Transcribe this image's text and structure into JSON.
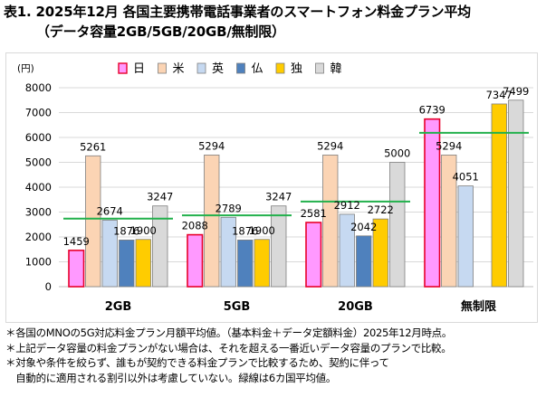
{
  "header": {
    "title": "表1. 2025年12月 各国主要携帯電話事業者のスマートフォン料金プラン平均",
    "subtitle": "（データ容量2GB/5GB/20GB/無制限）"
  },
  "chart_data": {
    "type": "bar",
    "title": "",
    "unit_label": "(円)",
    "categories": [
      "2GB",
      "5GB",
      "20GB",
      "無制限"
    ],
    "ylim": [
      0,
      8000
    ],
    "yticks": [
      0,
      1000,
      2000,
      3000,
      4000,
      5000,
      6000,
      7000,
      8000
    ],
    "grid": true,
    "legend_position": "top",
    "series": [
      {
        "name": "日",
        "color": "#ff99ff",
        "edge": "#e8002a",
        "values": [
          1459,
          2088,
          2581,
          6739
        ]
      },
      {
        "name": "米",
        "color": "#fbd4b4",
        "edge": "#7f7f7f",
        "values": [
          5261,
          5294,
          5294,
          5294
        ]
      },
      {
        "name": "英",
        "color": "#c6d9f1",
        "edge": "#7f7f7f",
        "values": [
          2674,
          2789,
          2912,
          4051
        ]
      },
      {
        "name": "仏",
        "color": "#4f81bd",
        "edge": "#7f7f7f",
        "values": [
          1876,
          1876,
          2042,
          null
        ]
      },
      {
        "name": "独",
        "color": "#ffcc00",
        "edge": "#7f7f7f",
        "values": [
          1900,
          1900,
          2722,
          7347
        ]
      },
      {
        "name": "韓",
        "color": "#d9d9d9",
        "edge": "#7f7f7f",
        "values": [
          3247,
          3247,
          5000,
          7499
        ]
      }
    ],
    "averages": {
      "color": "#22b14c",
      "values": [
        2736,
        2866,
        3425,
        6186
      ]
    }
  },
  "notes": [
    "＊各国のMNOの5G対応料金プラン月額平均値。（基本料金＋データ定額料金）2025年12月時点。",
    "＊上記データ容量の料金プランがない場合は、それを超える一番近いデータ容量のプランで比較。",
    "＊対象や条件を絞らず、誰もが契約できる料金プランで比較するため、契約に伴って",
    "　自動的に適用される割引以外は考慮していない。緑線は6カ国平均値。"
  ]
}
